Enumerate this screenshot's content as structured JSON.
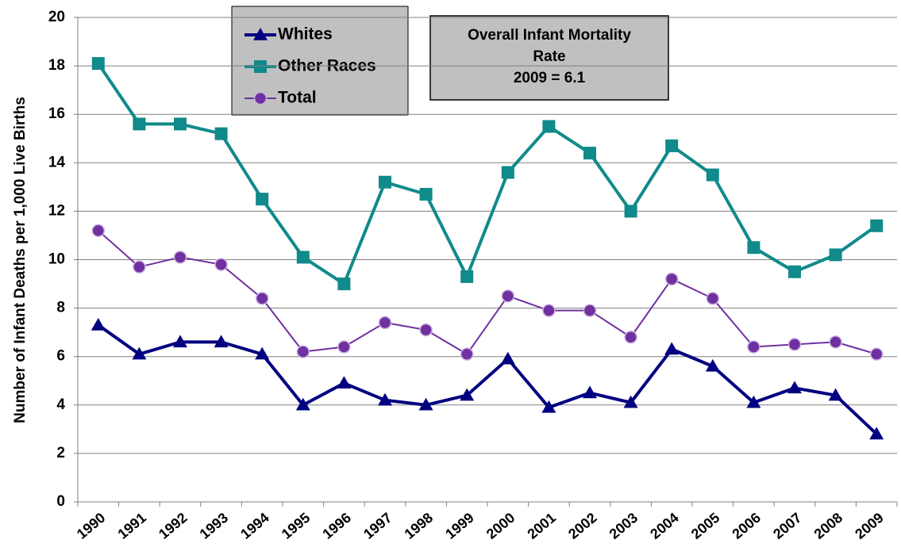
{
  "chart_data": {
    "type": "line",
    "y_axis_label": "Number of Infant Deaths per 1,000 Live Births",
    "categories": [
      "1990",
      "1991",
      "1992",
      "1993",
      "1994",
      "1995",
      "1996",
      "1997",
      "1998",
      "1999",
      "2000",
      "2001",
      "2002",
      "2003",
      "2004",
      "2005",
      "2006",
      "2007",
      "2008",
      "2009"
    ],
    "series": [
      {
        "name": "Whites",
        "color": "#000080",
        "marker": "triangle",
        "values": [
          7.3,
          6.1,
          6.6,
          6.6,
          6.1,
          4.0,
          4.9,
          4.2,
          4.0,
          4.4,
          5.9,
          3.9,
          4.5,
          4.1,
          6.3,
          5.6,
          4.1,
          4.7,
          4.4,
          2.8
        ]
      },
      {
        "name": "Other Races",
        "color": "#108a8a",
        "marker": "square",
        "values": [
          18.1,
          15.6,
          15.6,
          15.2,
          12.5,
          10.1,
          9.0,
          13.2,
          12.7,
          9.3,
          13.6,
          15.5,
          14.4,
          12.0,
          14.7,
          13.5,
          10.5,
          9.5,
          10.2,
          11.4
        ]
      },
      {
        "name": "Total",
        "color": "#7030a0",
        "marker": "circle",
        "values": [
          11.2,
          9.7,
          10.1,
          9.8,
          8.4,
          6.2,
          6.4,
          7.4,
          7.1,
          6.1,
          8.5,
          7.9,
          7.9,
          6.8,
          9.2,
          8.4,
          6.4,
          6.5,
          6.6,
          6.1
        ]
      }
    ],
    "annotation": [
      "Overall Infant Mortality",
      "Rate",
      "2009  = 6.1"
    ],
    "ylim": [
      0,
      20
    ],
    "yticks": [
      0,
      2,
      4,
      6,
      8,
      10,
      12,
      14,
      16,
      18,
      20
    ],
    "grid": true
  }
}
